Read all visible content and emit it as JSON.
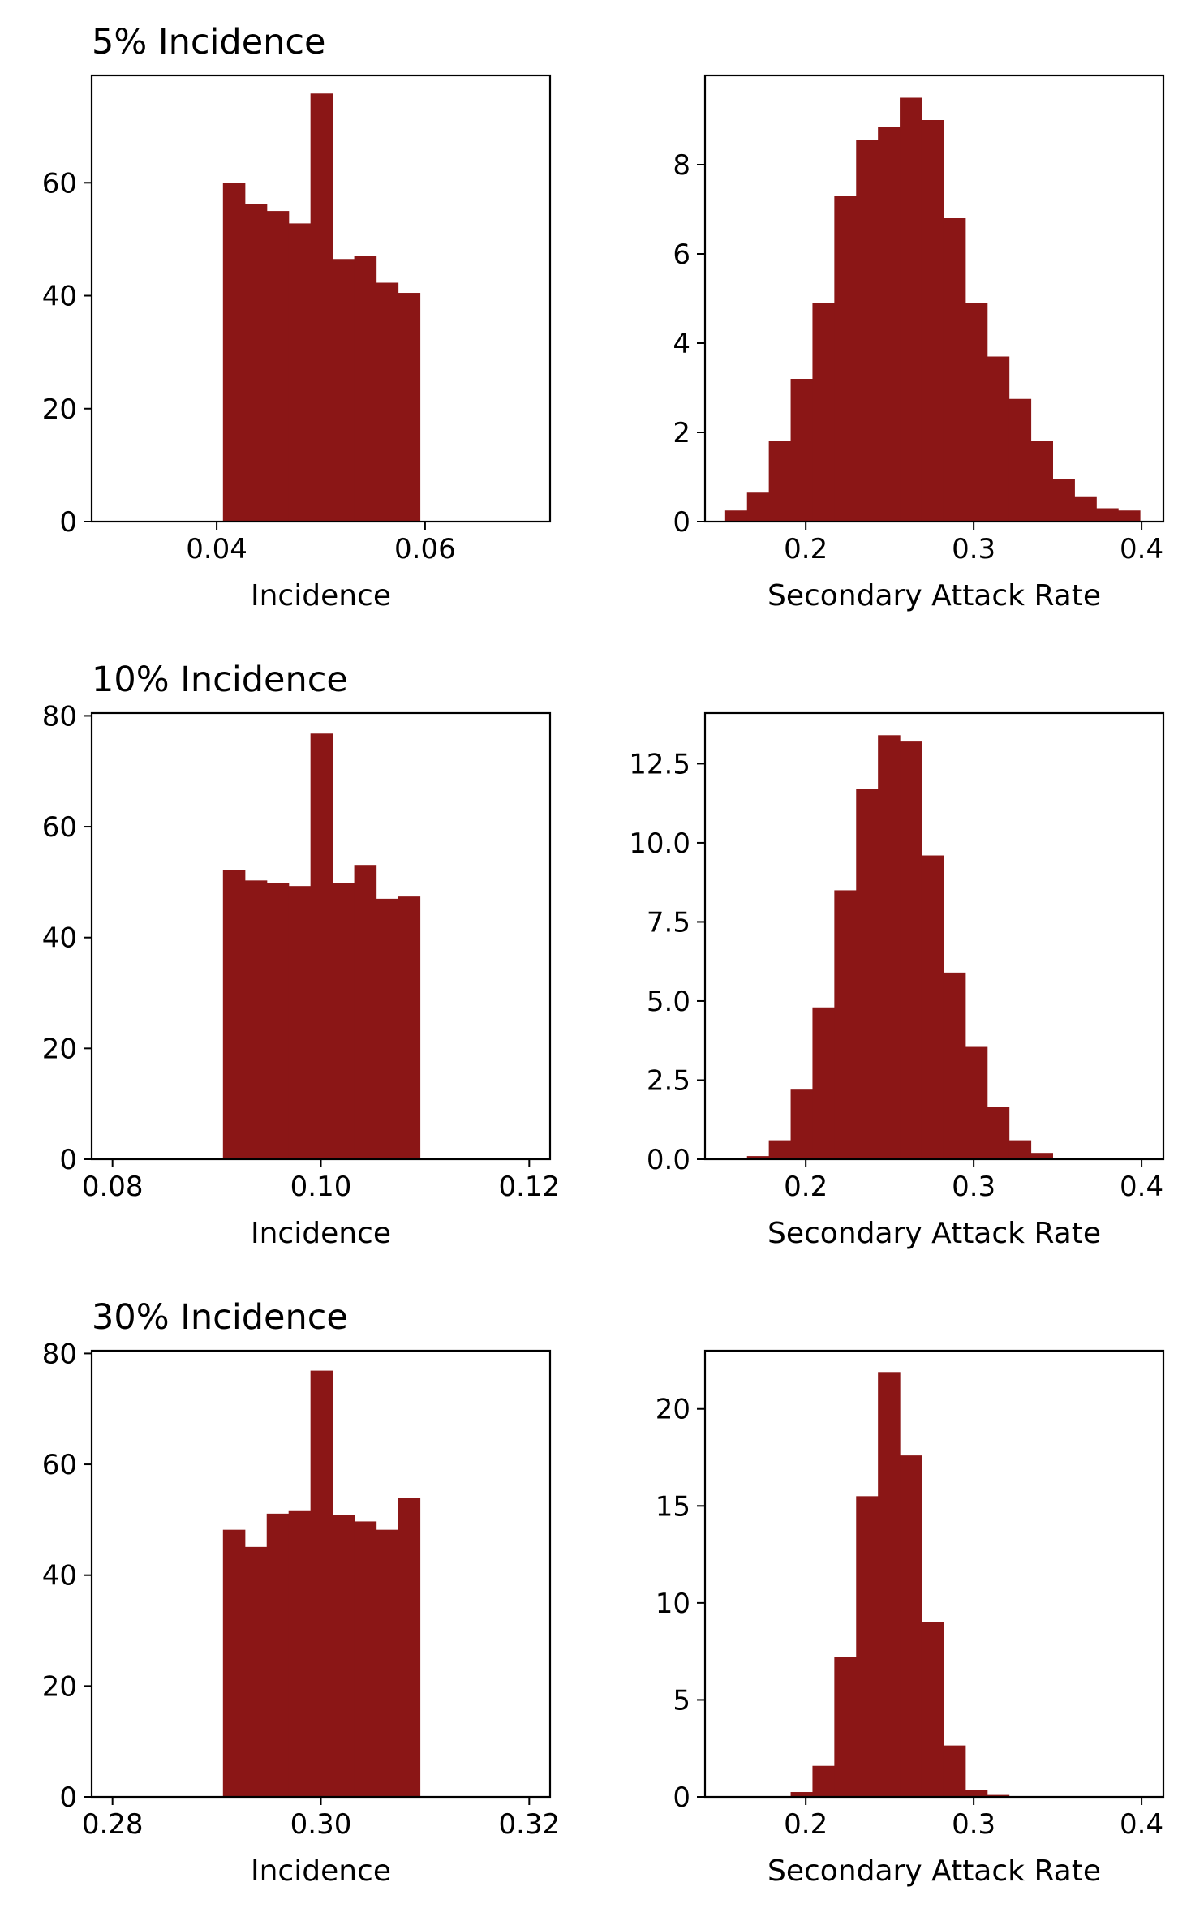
{
  "colors": {
    "bar": "#8b1616",
    "axis": "#000000",
    "background": "#ffffff"
  },
  "chart_data": [
    {
      "type": "bar",
      "title": "5% Incidence",
      "xlabel": "Incidence",
      "ylabel": "",
      "xlim": [
        0.028,
        0.072
      ],
      "ylim": [
        0,
        79
      ],
      "xticks": [
        0.04,
        0.06
      ],
      "xtick_labels": [
        "0.04",
        "0.06"
      ],
      "yticks": [
        0,
        20,
        40,
        60
      ],
      "ytick_labels": [
        "0",
        "20",
        "40",
        "60"
      ],
      "bin_edges": [
        0.0406,
        0.0427,
        0.0448,
        0.0469,
        0.049,
        0.0511,
        0.0532,
        0.0553,
        0.0574,
        0.0595
      ],
      "values": [
        60,
        56.2,
        55,
        52.8,
        75.8,
        46.5,
        47,
        42.3,
        40.5
      ]
    },
    {
      "type": "bar",
      "title": "",
      "xlabel": "Secondary Attack Rate",
      "ylabel": "",
      "xlim": [
        0.14,
        0.413
      ],
      "ylim": [
        0,
        10
      ],
      "xticks": [
        0.2,
        0.3,
        0.4
      ],
      "xtick_labels": [
        "0.2",
        "0.3",
        "0.4"
      ],
      "yticks": [
        0,
        2,
        4,
        6,
        8
      ],
      "ytick_labels": [
        "0",
        "2",
        "4",
        "6",
        "8"
      ],
      "bin_edges": [
        0.152,
        0.165,
        0.178,
        0.191,
        0.204,
        0.217,
        0.23,
        0.243,
        0.256,
        0.269,
        0.282,
        0.295,
        0.308,
        0.321,
        0.334,
        0.347,
        0.36,
        0.373,
        0.386,
        0.399
      ],
      "values": [
        0.25,
        0.65,
        1.8,
        3.2,
        4.9,
        7.3,
        8.55,
        8.85,
        9.5,
        9.0,
        6.8,
        4.9,
        3.7,
        2.75,
        1.8,
        0.95,
        0.55,
        0.3,
        0.25
      ]
    },
    {
      "type": "bar",
      "title": "10% Incidence",
      "xlabel": "Incidence",
      "ylabel": "",
      "xlim": [
        0.078,
        0.122
      ],
      "ylim": [
        0,
        80.5
      ],
      "xticks": [
        0.08,
        0.1,
        0.12
      ],
      "xtick_labels": [
        "0.08",
        "0.10",
        "0.12"
      ],
      "yticks": [
        0,
        20,
        40,
        60,
        80
      ],
      "ytick_labels": [
        "0",
        "20",
        "40",
        "60",
        "80"
      ],
      "bin_edges": [
        0.0906,
        0.0927,
        0.0948,
        0.0969,
        0.099,
        0.1011,
        0.1032,
        0.1053,
        0.1074,
        0.1095
      ],
      "values": [
        52.2,
        50.3,
        49.9,
        49.3,
        76.8,
        49.8,
        53.1,
        47,
        47.4
      ]
    },
    {
      "type": "bar",
      "title": "",
      "xlabel": "Secondary Attack Rate",
      "ylabel": "",
      "xlim": [
        0.14,
        0.413
      ],
      "ylim": [
        0,
        14.1
      ],
      "xticks": [
        0.2,
        0.3,
        0.4
      ],
      "xtick_labels": [
        "0.2",
        "0.3",
        "0.4"
      ],
      "yticks": [
        0,
        2.5,
        5,
        7.5,
        10,
        12.5
      ],
      "ytick_labels": [
        "0.0",
        "2.5",
        "5.0",
        "7.5",
        "10.0",
        "12.5"
      ],
      "bin_edges": [
        0.165,
        0.178,
        0.191,
        0.204,
        0.217,
        0.23,
        0.243,
        0.256,
        0.269,
        0.282,
        0.295,
        0.308,
        0.321,
        0.334,
        0.347
      ],
      "values": [
        0.1,
        0.6,
        2.2,
        4.8,
        8.5,
        11.7,
        13.4,
        13.2,
        9.6,
        5.9,
        3.55,
        1.65,
        0.6,
        0.2
      ]
    },
    {
      "type": "bar",
      "title": "30% Incidence",
      "xlabel": "Incidence",
      "ylabel": "",
      "xlim": [
        0.278,
        0.322
      ],
      "ylim": [
        0,
        80.5
      ],
      "xticks": [
        0.28,
        0.3,
        0.32
      ],
      "xtick_labels": [
        "0.28",
        "0.30",
        "0.32"
      ],
      "yticks": [
        0,
        20,
        40,
        60,
        80
      ],
      "ytick_labels": [
        "0",
        "20",
        "40",
        "60",
        "80"
      ],
      "bin_edges": [
        0.2906,
        0.2927,
        0.2948,
        0.2969,
        0.299,
        0.3011,
        0.3032,
        0.3053,
        0.3074,
        0.3095
      ],
      "values": [
        48.2,
        45.1,
        51.1,
        51.7,
        76.9,
        50.8,
        49.7,
        48.2,
        53.9
      ]
    },
    {
      "type": "bar",
      "title": "",
      "xlabel": "Secondary Attack Rate",
      "ylabel": "",
      "xlim": [
        0.14,
        0.413
      ],
      "ylim": [
        0,
        23
      ],
      "xticks": [
        0.2,
        0.3,
        0.4
      ],
      "xtick_labels": [
        "0.2",
        "0.3",
        "0.4"
      ],
      "yticks": [
        0,
        5,
        10,
        15,
        20
      ],
      "ytick_labels": [
        "0",
        "5",
        "10",
        "15",
        "20"
      ],
      "bin_edges": [
        0.191,
        0.204,
        0.217,
        0.23,
        0.243,
        0.256,
        0.269,
        0.282,
        0.295,
        0.308,
        0.321
      ],
      "values": [
        0.25,
        1.6,
        7.2,
        15.5,
        21.9,
        17.6,
        9.0,
        2.65,
        0.35,
        0.1
      ]
    }
  ]
}
